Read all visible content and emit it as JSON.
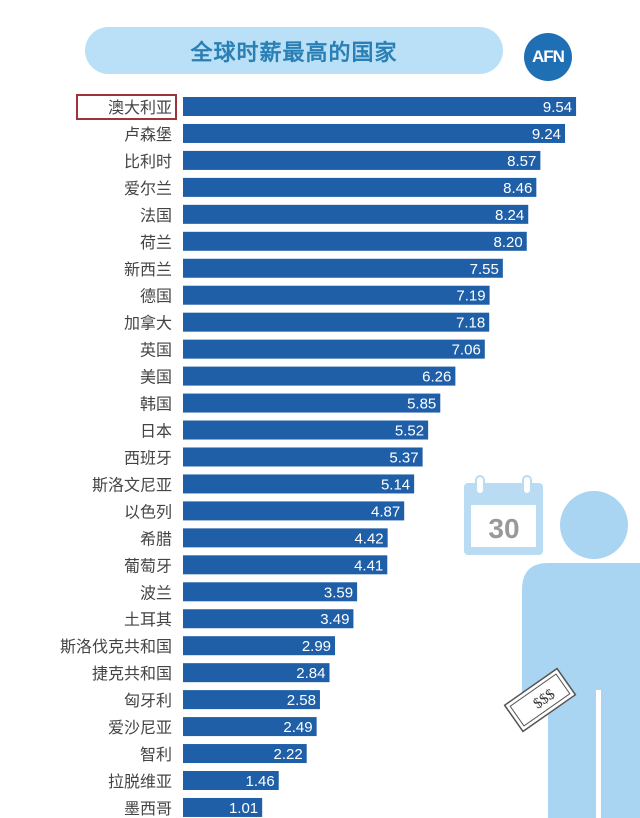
{
  "chart_data": {
    "type": "bar",
    "orientation": "horizontal",
    "title": "全球时薪最高的国家",
    "source_logo": "AFN",
    "highlighted_category": "澳大利亚",
    "categories": [
      "澳大利亚",
      "卢森堡",
      "比利时",
      "爱尔兰",
      "法国",
      "荷兰",
      "新西兰",
      "德国",
      "加拿大",
      "英国",
      "美国",
      "韩国",
      "日本",
      "西班牙",
      "斯洛文尼亚",
      "以色列",
      "希腊",
      "葡萄牙",
      "波兰",
      "土耳其",
      "斯洛伐克共和国",
      "捷克共和国",
      "匈牙利",
      "爱沙尼亚",
      "智利",
      "拉脱维亚",
      "墨西哥"
    ],
    "values": [
      9.54,
      9.24,
      8.57,
      8.46,
      8.24,
      8.2,
      7.55,
      7.19,
      7.18,
      7.06,
      6.26,
      5.85,
      5.52,
      5.37,
      5.14,
      4.87,
      4.42,
      4.41,
      3.59,
      3.49,
      2.99,
      2.84,
      2.58,
      2.49,
      2.22,
      1.46,
      1.01
    ],
    "value_labels": [
      "9.54",
      "9.24",
      "8.57",
      "8.46",
      "8.24",
      "8.20",
      "7.55",
      "7.19",
      "7.18",
      "7.06",
      "6.26",
      "5.85",
      "5.52",
      "5.37",
      "5.14",
      "4.87",
      "4.42",
      "4.41",
      "3.59",
      "3.49",
      "2.99",
      "2.84",
      "2.58",
      "2.49",
      "2.22",
      "1.46",
      "1.01"
    ],
    "xlabel": "",
    "ylabel": "",
    "grid": false,
    "legend": "none",
    "bar_color": "#1f5fa8"
  },
  "decor": {
    "calendar_day": "30",
    "bill_text": "$$$"
  }
}
